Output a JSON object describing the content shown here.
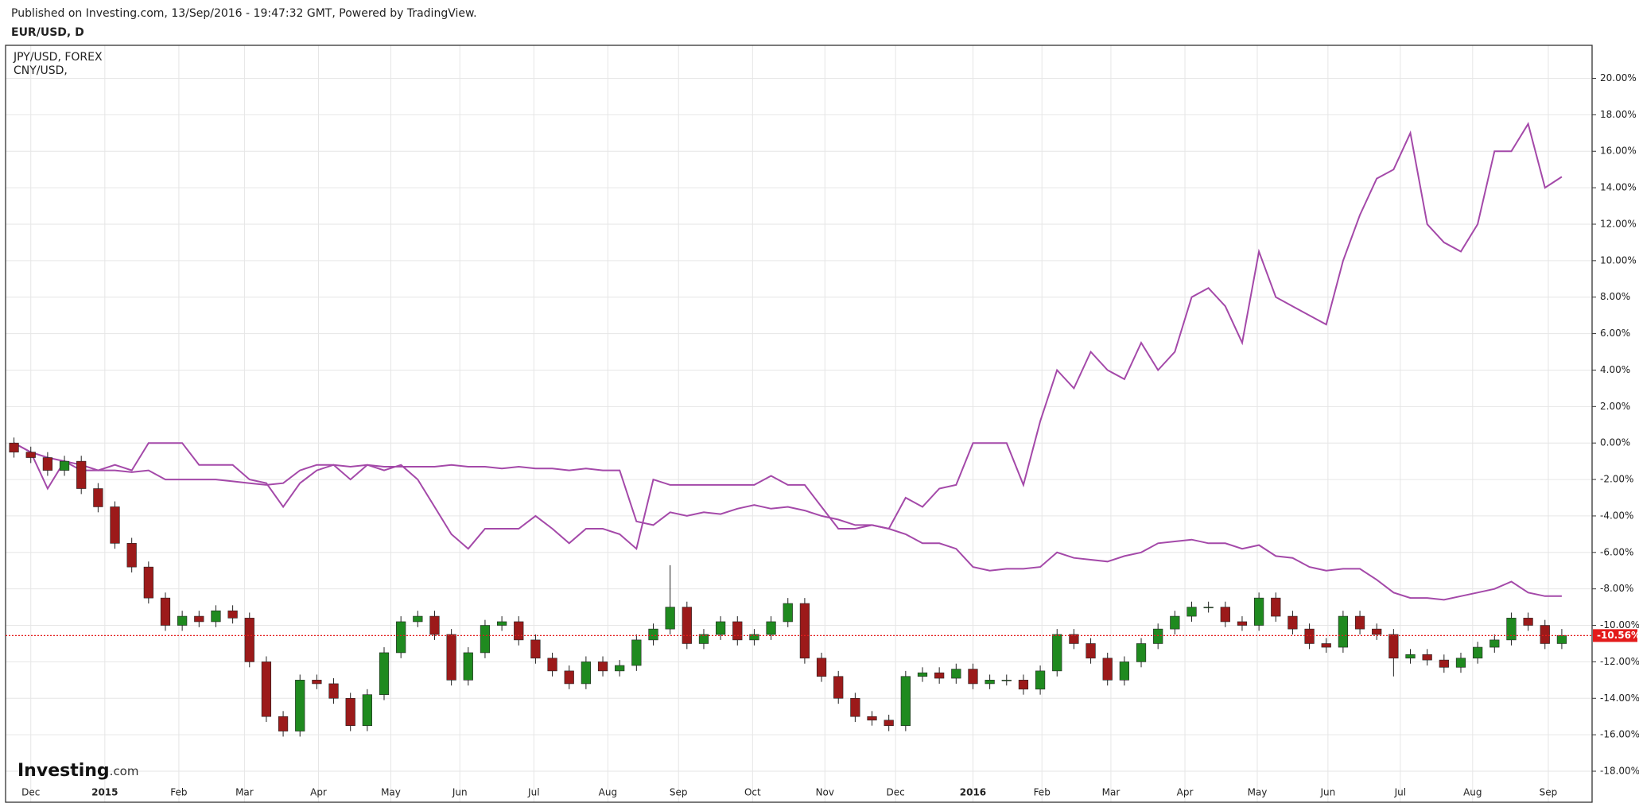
{
  "chart_data": {
    "type": "candlestick",
    "header": "Published on Investing.com, 13/Sep/2016 - 19:47:32 GMT, Powered by TradingView.",
    "title": "EUR/USD, D",
    "logo": [
      "Investing",
      ".com"
    ],
    "up_color": "#1f8a1f",
    "down_color": "#9c1a1a",
    "grid": true,
    "x": [
      0,
      1,
      2,
      3,
      4,
      5,
      6,
      7,
      8,
      9,
      10,
      11,
      12,
      13,
      14,
      15,
      16,
      17,
      18,
      19,
      20,
      21,
      22,
      23,
      24,
      25,
      26,
      27,
      28,
      29,
      30,
      31,
      32,
      33,
      34,
      35,
      36,
      37,
      38,
      39,
      40,
      41,
      42,
      43,
      44,
      45,
      46,
      47,
      48,
      49,
      50,
      51,
      52,
      53,
      54,
      55,
      56,
      57,
      58,
      59,
      60,
      61,
      62,
      63,
      64,
      65,
      66,
      67,
      68,
      69,
      70,
      71,
      72,
      73,
      74,
      75,
      76,
      77,
      78,
      79,
      80,
      81,
      82,
      83,
      84,
      85,
      86,
      87,
      88,
      89,
      90,
      91,
      92
    ],
    "open": [
      0,
      -0.5,
      -0.8,
      -1.5,
      -1.0,
      -2.5,
      -3.5,
      -5.5,
      -6.8,
      -8.5,
      -10.0,
      -9.5,
      -9.8,
      -9.2,
      -9.6,
      -12.0,
      -15.0,
      -15.8,
      -13.0,
      -13.2,
      -14.0,
      -15.5,
      -13.8,
      -11.5,
      -9.8,
      -9.5,
      -10.5,
      -13.0,
      -11.5,
      -10.0,
      -9.8,
      -10.8,
      -11.8,
      -12.5,
      -13.2,
      -12.0,
      -12.5,
      -12.2,
      -10.8,
      -10.2,
      -9.0,
      -11.0,
      -10.5,
      -9.8,
      -10.8,
      -10.5,
      -9.8,
      -8.8,
      -11.8,
      -12.8,
      -14.0,
      -15.0,
      -15.2,
      -15.5,
      -12.8,
      -12.6,
      -12.9,
      -12.4,
      -13.2,
      -13.0,
      -13.0,
      -13.5,
      -12.5,
      -10.5,
      -11.0,
      -11.8,
      -13.0,
      -12.0,
      -11.0,
      -10.2,
      -9.5,
      -9.0,
      -9.0,
      -9.8,
      -10.0,
      -8.5,
      -9.5,
      -10.2,
      -11.0,
      -11.2,
      -9.5,
      -10.2,
      -10.5,
      -11.8,
      -11.6,
      -11.9,
      -12.3,
      -11.8,
      -11.2,
      -10.8,
      -9.6,
      -10.0,
      -11.0
    ],
    "high": [
      0.3,
      -0.2,
      -0.5,
      -0.7,
      -0.7,
      -2.2,
      -3.2,
      -5.2,
      -6.5,
      -8.2,
      -9.2,
      -9.2,
      -8.9,
      -8.9,
      -9.3,
      -11.7,
      -14.7,
      -12.7,
      -12.7,
      -12.9,
      -13.7,
      -13.5,
      -11.2,
      -9.5,
      -9.2,
      -9.2,
      -10.2,
      -11.2,
      -9.7,
      -9.5,
      -9.5,
      -10.5,
      -11.5,
      -12.2,
      -11.7,
      -11.7,
      -11.9,
      -10.5,
      -9.9,
      -6.7,
      -8.7,
      -10.2,
      -9.5,
      -9.5,
      -10.2,
      -9.5,
      -8.5,
      -8.5,
      -11.5,
      -12.5,
      -13.7,
      -14.7,
      -14.9,
      -12.5,
      -12.3,
      -12.3,
      -12.1,
      -12.1,
      -12.7,
      -12.7,
      -12.7,
      -12.2,
      -10.2,
      -10.2,
      -10.7,
      -11.5,
      -11.7,
      -10.7,
      -9.9,
      -9.2,
      -8.7,
      -8.7,
      -8.7,
      -9.5,
      -8.2,
      -8.2,
      -9.2,
      -9.9,
      -10.7,
      -9.2,
      -9.2,
      -9.9,
      -10.2,
      -11.3,
      -11.3,
      -11.6,
      -11.5,
      -10.9,
      -10.5,
      -9.3,
      -9.3,
      -9.7,
      -10.2
    ],
    "low": [
      -0.8,
      -1.1,
      -1.8,
      -1.8,
      -2.8,
      -3.8,
      -5.8,
      -7.1,
      -8.8,
      -10.3,
      -10.3,
      -10.1,
      -10.1,
      -9.9,
      -12.3,
      -15.3,
      -16.1,
      -16.1,
      -13.5,
      -14.3,
      -15.8,
      -15.8,
      -14.1,
      -11.8,
      -10.1,
      -10.8,
      -13.3,
      -13.3,
      -11.8,
      -10.3,
      -11.1,
      -12.1,
      -12.8,
      -13.5,
      -13.5,
      -12.8,
      -12.8,
      -12.5,
      -11.1,
      -10.5,
      -11.3,
      -11.3,
      -10.8,
      -11.1,
      -11.1,
      -10.8,
      -10.1,
      -12.1,
      -13.1,
      -14.3,
      -15.3,
      -15.5,
      -15.8,
      -15.8,
      -13.1,
      -13.2,
      -13.2,
      -13.5,
      -13.5,
      -13.3,
      -13.8,
      -13.8,
      -12.8,
      -11.3,
      -12.1,
      -13.3,
      -13.3,
      -12.3,
      -11.3,
      -10.5,
      -9.8,
      -9.3,
      -10.1,
      -10.3,
      -10.3,
      -9.8,
      -10.5,
      -11.3,
      -11.5,
      -11.5,
      -10.5,
      -10.8,
      -12.8,
      -12.1,
      -12.2,
      -12.6,
      -12.6,
      -12.1,
      -11.5,
      -11.1,
      -10.3,
      -11.3,
      -11.3
    ],
    "close": [
      -0.5,
      -0.8,
      -1.5,
      -1.0,
      -2.5,
      -3.5,
      -5.5,
      -6.8,
      -8.5,
      -10.0,
      -9.5,
      -9.8,
      -9.2,
      -9.6,
      -12.0,
      -15.0,
      -15.8,
      -13.0,
      -13.2,
      -14.0,
      -15.5,
      -13.8,
      -11.5,
      -9.8,
      -9.5,
      -10.5,
      -13.0,
      -11.5,
      -10.0,
      -9.8,
      -10.8,
      -11.8,
      -12.5,
      -13.2,
      -12.0,
      -12.5,
      -12.2,
      -10.8,
      -10.2,
      -9.0,
      -11.0,
      -10.5,
      -9.8,
      -10.8,
      -10.5,
      -9.8,
      -8.8,
      -11.8,
      -12.8,
      -14.0,
      -15.0,
      -15.2,
      -15.5,
      -12.8,
      -12.6,
      -12.9,
      -12.4,
      -13.2,
      -13.0,
      -13.0,
      -13.5,
      -12.5,
      -10.5,
      -11.0,
      -11.8,
      -13.0,
      -12.0,
      -11.0,
      -10.2,
      -9.5,
      -9.0,
      -9.0,
      -9.8,
      -10.0,
      -8.5,
      -9.5,
      -10.2,
      -11.0,
      -11.2,
      -9.5,
      -10.2,
      -10.5,
      -11.8,
      -11.6,
      -11.9,
      -12.3,
      -11.8,
      -11.2,
      -10.8,
      -9.6,
      -10.0,
      -11.0,
      -10.56
    ],
    "series": [
      {
        "name": "JPY/USD, FOREX",
        "color": "#a449a9",
        "values": [
          0.0,
          -0.5,
          -2.5,
          -1.0,
          -1.5,
          -1.5,
          -1.2,
          -1.5,
          0.0,
          0.0,
          0.0,
          -1.2,
          -1.2,
          -1.2,
          -2.0,
          -2.2,
          -3.5,
          -2.2,
          -1.5,
          -1.2,
          -2.0,
          -1.2,
          -1.5,
          -1.2,
          -2.0,
          -3.5,
          -5.0,
          -5.8,
          -4.7,
          -4.7,
          -4.7,
          -4.0,
          -4.7,
          -5.5,
          -4.7,
          -4.7,
          -5.0,
          -5.8,
          -2.0,
          -2.3,
          -2.3,
          -2.3,
          -2.3,
          -2.3,
          -2.3,
          -1.8,
          -2.3,
          -2.3,
          -3.5,
          -4.7,
          -4.7,
          -4.5,
          -4.7,
          -3.0,
          -3.5,
          -2.5,
          -2.3,
          0.0,
          0.0,
          0.0,
          -2.3,
          1.2,
          4.0,
          3.0,
          5.0,
          4.0,
          3.5,
          5.5,
          4.0,
          5.0,
          8.0,
          8.5,
          7.5,
          5.5,
          10.5,
          8.0,
          7.5,
          7.0,
          6.5,
          10.0,
          12.5,
          14.5,
          15.0,
          17.0,
          12.0,
          11.0,
          10.5,
          12.0,
          16.0,
          16.0,
          17.5,
          14.0,
          14.6
        ]
      },
      {
        "name": "CNY/USD,",
        "color": "#a449a9",
        "values": [
          0.0,
          -0.5,
          -0.8,
          -1.0,
          -1.2,
          -1.5,
          -1.5,
          -1.6,
          -1.5,
          -2.0,
          -2.0,
          -2.0,
          -2.0,
          -2.1,
          -2.2,
          -2.3,
          -2.2,
          -1.5,
          -1.2,
          -1.2,
          -1.3,
          -1.2,
          -1.3,
          -1.3,
          -1.3,
          -1.3,
          -1.2,
          -1.3,
          -1.3,
          -1.4,
          -1.3,
          -1.4,
          -1.4,
          -1.5,
          -1.4,
          -1.5,
          -1.5,
          -4.3,
          -4.5,
          -3.8,
          -4.0,
          -3.8,
          -3.9,
          -3.6,
          -3.4,
          -3.6,
          -3.5,
          -3.7,
          -4.0,
          -4.2,
          -4.5,
          -4.5,
          -4.7,
          -5.0,
          -5.5,
          -5.5,
          -5.8,
          -6.8,
          -7.0,
          -6.9,
          -6.9,
          -6.8,
          -6.0,
          -6.3,
          -6.4,
          -6.5,
          -6.2,
          -6.0,
          -5.5,
          -5.4,
          -5.3,
          -5.5,
          -5.5,
          -5.8,
          -5.6,
          -6.2,
          -6.3,
          -6.8,
          -7.0,
          -6.9,
          -6.9,
          -7.5,
          -8.2,
          -8.5,
          -8.5,
          -8.6,
          -8.4,
          -8.2,
          -8.0,
          -7.6,
          -8.2,
          -8.4,
          -8.4
        ]
      }
    ],
    "last_value": {
      "value": -10.56,
      "label": "-10.56%"
    },
    "last_color": "#e31b1b",
    "xlim": [
      -0.5,
      93.8
    ],
    "xticks": [
      {
        "value": 1.0,
        "label": "Dec"
      },
      {
        "value": 5.4,
        "label": "2015"
      },
      {
        "value": 9.8,
        "label": "Feb"
      },
      {
        "value": 13.7,
        "label": "Mar"
      },
      {
        "value": 18.1,
        "label": "Apr"
      },
      {
        "value": 22.4,
        "label": "May"
      },
      {
        "value": 26.5,
        "label": "Jun"
      },
      {
        "value": 30.9,
        "label": "Jul"
      },
      {
        "value": 35.3,
        "label": "Aug"
      },
      {
        "value": 39.5,
        "label": "Sep"
      },
      {
        "value": 43.9,
        "label": "Oct"
      },
      {
        "value": 48.2,
        "label": "Nov"
      },
      {
        "value": 52.4,
        "label": "Dec"
      },
      {
        "value": 57.0,
        "label": "2016"
      },
      {
        "value": 61.1,
        "label": "Feb"
      },
      {
        "value": 65.2,
        "label": "Mar"
      },
      {
        "value": 69.6,
        "label": "Apr"
      },
      {
        "value": 73.9,
        "label": "May"
      },
      {
        "value": 78.1,
        "label": "Jun"
      },
      {
        "value": 82.4,
        "label": "Jul"
      },
      {
        "value": 86.7,
        "label": "Aug"
      },
      {
        "value": 91.2,
        "label": "Sep"
      }
    ],
    "ylim": [
      -19.7,
      21.81
    ],
    "yticks": [
      {
        "value": 20,
        "label": "20.00%"
      },
      {
        "value": 18,
        "label": "18.00%"
      },
      {
        "value": 16,
        "label": "16.00%"
      },
      {
        "value": 14,
        "label": "14.00%"
      },
      {
        "value": 12,
        "label": "12.00%"
      },
      {
        "value": 10,
        "label": "10.00%"
      },
      {
        "value": 8,
        "label": "8.00%"
      },
      {
        "value": 6,
        "label": "6.00%"
      },
      {
        "value": 4,
        "label": "4.00%"
      },
      {
        "value": 2,
        "label": "2.00%"
      },
      {
        "value": 0,
        "label": "0.00%"
      },
      {
        "value": -2,
        "label": "-2.00%"
      },
      {
        "value": -4,
        "label": "-4.00%"
      },
      {
        "value": -6,
        "label": "-6.00%"
      },
      {
        "value": -8,
        "label": "-8.00%"
      },
      {
        "value": -10,
        "label": "-10.00%"
      },
      {
        "value": -12,
        "label": "-12.00%"
      },
      {
        "value": -14,
        "label": "-14.00%"
      },
      {
        "value": -16,
        "label": "-16.00%"
      },
      {
        "value": -18,
        "label": "-18.00%"
      }
    ]
  }
}
